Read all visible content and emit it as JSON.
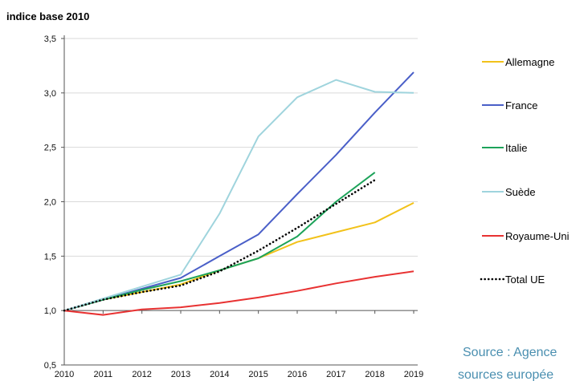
{
  "chart_data": {
    "type": "line",
    "ylabel": "indice base 2010",
    "xlabel": "",
    "x": [
      2010,
      2011,
      2012,
      2013,
      2014,
      2015,
      2016,
      2017,
      2018,
      2019
    ],
    "ylim": [
      0.5,
      3.5
    ],
    "y_ticks": [
      "0,5",
      "1,0",
      "1,5",
      "2,0",
      "2,5",
      "3,0",
      "3,5"
    ],
    "x_ticks": [
      "2010",
      "2011",
      "2012",
      "2013",
      "2014",
      "2015",
      "2016",
      "2017",
      "2018",
      "2019"
    ],
    "grid": "horizontal",
    "legend_position": "right",
    "series": [
      {
        "name": "Allemagne",
        "color": "#f2c21a",
        "dash": "solid",
        "x": [
          2010,
          2011,
          2012,
          2013,
          2014,
          2015,
          2016,
          2017,
          2018,
          2019
        ],
        "values": [
          1.0,
          1.1,
          1.17,
          1.24,
          1.37,
          1.48,
          1.63,
          1.72,
          1.81,
          1.99
        ]
      },
      {
        "name": "France",
        "color": "#4a5fc8",
        "dash": "solid",
        "x": [
          2010,
          2011,
          2012,
          2013,
          2014,
          2015,
          2016,
          2017,
          2018,
          2019
        ],
        "values": [
          1.0,
          1.1,
          1.2,
          1.3,
          1.5,
          1.7,
          2.07,
          2.43,
          2.82,
          3.19
        ]
      },
      {
        "name": "Italie",
        "color": "#1da35a",
        "dash": "solid",
        "x": [
          2010,
          2011,
          2012,
          2013,
          2014,
          2015,
          2016,
          2017,
          2018
        ],
        "values": [
          1.0,
          1.1,
          1.19,
          1.27,
          1.37,
          1.48,
          1.68,
          2.0,
          2.27
        ]
      },
      {
        "name": "Suède",
        "color": "#9fd4dd",
        "dash": "solid",
        "x": [
          2010,
          2011,
          2012,
          2013,
          2014,
          2015,
          2016,
          2017,
          2018,
          2019
        ],
        "values": [
          1.0,
          1.11,
          1.22,
          1.33,
          1.89,
          2.6,
          2.96,
          3.12,
          3.01,
          3.0
        ]
      },
      {
        "name": "Royaume-Uni",
        "color": "#e83232",
        "dash": "solid",
        "x": [
          2010,
          2011,
          2012,
          2013,
          2014,
          2015,
          2016,
          2017,
          2018,
          2019
        ],
        "values": [
          1.0,
          0.96,
          1.01,
          1.03,
          1.07,
          1.12,
          1.18,
          1.25,
          1.31,
          1.36
        ]
      },
      {
        "name": "Total UE",
        "color": "#000000",
        "dash": "dotted",
        "x": [
          2010,
          2011,
          2012,
          2013,
          2014,
          2015,
          2016,
          2017,
          2018
        ],
        "values": [
          1.0,
          1.1,
          1.17,
          1.23,
          1.36,
          1.55,
          1.76,
          1.98,
          2.2
        ]
      }
    ]
  },
  "footer": {
    "source_line1": "Source : Agence",
    "source_line2": "sources europée"
  }
}
